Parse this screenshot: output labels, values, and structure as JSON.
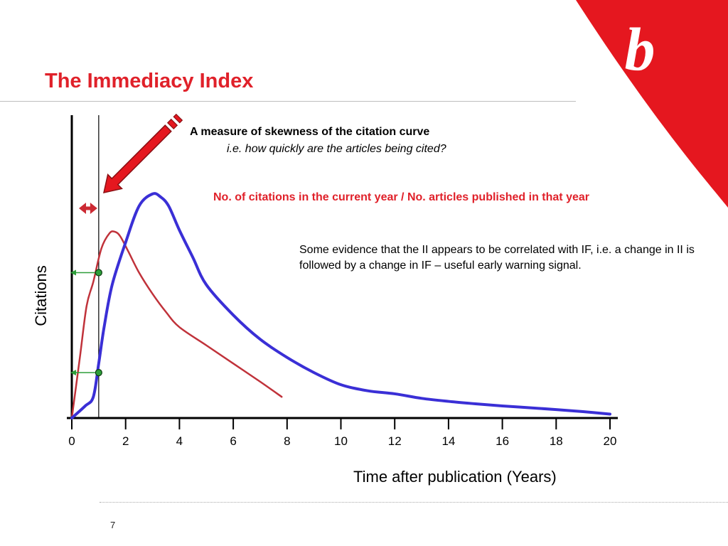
{
  "slide": {
    "title": "The Immediacy Index",
    "page_number": "7"
  },
  "annotations": {
    "measure": "A measure of skewness of the citation curve",
    "question": "i.e. how quickly are the articles being cited?",
    "formula": "No. of citations in the current year / No. articles published in that year",
    "evidence": "Some evidence that the II appears to be correlated with IF, i.e. a change in II is followed by a change in IF – useful early warning signal."
  },
  "logo": {
    "letter": "b",
    "color": "#e5171f"
  },
  "colors": {
    "accent_red": "#e0212a",
    "series_red": "#c0323a",
    "series_blue": "#3a2fd6",
    "marker_green": "#2e9e3a"
  },
  "chart_data": {
    "type": "line",
    "xlabel": "Time after publication (Years)",
    "ylabel": "Citations",
    "xlim": [
      0,
      20
    ],
    "ylim": [
      0,
      100
    ],
    "x_ticks": [
      0,
      2,
      4,
      6,
      8,
      10,
      12,
      14,
      16,
      18,
      20
    ],
    "grid": false,
    "series": [
      {
        "color": "#c0323a",
        "x": [
          0,
          0.3,
          0.55,
          0.8,
          1.1,
          1.4,
          1.6,
          1.8,
          2.1,
          2.5,
          3.0,
          3.5,
          4.0,
          5.0,
          6.0,
          7.0,
          7.8
        ],
        "y": [
          0,
          20,
          37,
          45,
          56,
          61,
          61.5,
          60,
          55,
          48,
          41,
          35,
          30,
          24,
          18,
          12,
          7
        ]
      },
      {
        "color": "#3a2fd6",
        "x": [
          0,
          0.5,
          0.8,
          1.0,
          1.2,
          1.5,
          2.0,
          2.5,
          3.0,
          3.3,
          3.6,
          4.0,
          4.5,
          5.0,
          6.0,
          7.0,
          8.0,
          9.0,
          10.0,
          11.0,
          12.0,
          13.0,
          14.0,
          15.0,
          16.0,
          17.0,
          18.0,
          19.0,
          20.0
        ],
        "y": [
          0,
          4,
          7,
          18,
          30,
          44,
          58,
          70,
          74,
          73,
          70,
          62,
          53,
          44,
          34,
          26,
          20,
          15,
          11,
          9,
          8,
          6.5,
          5.5,
          4.7,
          4,
          3.4,
          2.8,
          2.1,
          1.3
        ]
      }
    ],
    "reference_line": {
      "x": 1
    },
    "interval_marker": {
      "from": 0,
      "to": 1
    },
    "markers": [
      {
        "x": 1,
        "y": 48,
        "color": "#2e9e3a"
      },
      {
        "x": 1,
        "y": 15,
        "color": "#2e9e3a"
      }
    ]
  }
}
